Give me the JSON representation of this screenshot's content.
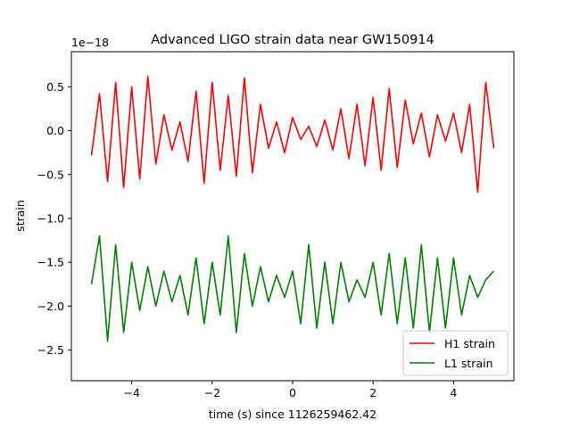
{
  "chart_data": {
    "type": "line",
    "title": "Advanced LIGO strain data near GW150914",
    "xlabel": "time (s) since 1126259462.42",
    "ylabel": "strain",
    "y_scale_note": "1e−18",
    "xlim": [
      -5.5,
      5.5
    ],
    "ylim": [
      -2.85,
      0.9
    ],
    "xticks": [
      {
        "value": -4,
        "label": "−4"
      },
      {
        "value": -2,
        "label": "−2"
      },
      {
        "value": 0,
        "label": "0"
      },
      {
        "value": 2,
        "label": "2"
      },
      {
        "value": 4,
        "label": "4"
      }
    ],
    "yticks": [
      {
        "value": 0.5,
        "label": "0.5"
      },
      {
        "value": 0.0,
        "label": "0.0"
      },
      {
        "value": -0.5,
        "label": "−0.5"
      },
      {
        "value": -1.0,
        "label": "−1.0"
      },
      {
        "value": -1.5,
        "label": "−1.5"
      },
      {
        "value": -2.0,
        "label": "−2.0"
      },
      {
        "value": -2.5,
        "label": "−2.5"
      }
    ],
    "grid": false,
    "legend_position": "lower-right",
    "series": [
      {
        "name": "H1 strain",
        "color": "#ff0000",
        "x": [
          -5.0,
          -4.8,
          -4.6,
          -4.4,
          -4.2,
          -4.0,
          -3.8,
          -3.6,
          -3.4,
          -3.2,
          -3.0,
          -2.8,
          -2.6,
          -2.4,
          -2.2,
          -2.0,
          -1.8,
          -1.6,
          -1.4,
          -1.2,
          -1.0,
          -0.8,
          -0.6,
          -0.4,
          -0.2,
          0.0,
          0.2,
          0.4,
          0.6,
          0.8,
          1.0,
          1.2,
          1.4,
          1.6,
          1.8,
          2.0,
          2.2,
          2.4,
          2.6,
          2.8,
          3.0,
          3.2,
          3.4,
          3.6,
          3.8,
          4.0,
          4.2,
          4.4,
          4.6,
          4.8,
          5.0
        ],
        "y": [
          -0.28,
          0.42,
          -0.58,
          0.55,
          -0.65,
          0.5,
          -0.55,
          0.62,
          -0.38,
          0.18,
          -0.22,
          0.1,
          -0.35,
          0.45,
          -0.6,
          0.55,
          -0.45,
          0.4,
          -0.52,
          0.6,
          -0.48,
          0.3,
          -0.2,
          0.1,
          -0.25,
          0.15,
          -0.1,
          0.05,
          -0.18,
          0.12,
          -0.22,
          0.25,
          -0.32,
          0.3,
          -0.4,
          0.38,
          -0.45,
          0.48,
          -0.42,
          0.35,
          -0.15,
          0.2,
          -0.3,
          0.18,
          -0.12,
          0.2,
          -0.25,
          0.3,
          -0.7,
          0.55,
          -0.2
        ]
      },
      {
        "name": "L1 strain",
        "color": "#008000",
        "x": [
          -5.0,
          -4.8,
          -4.6,
          -4.4,
          -4.2,
          -4.0,
          -3.8,
          -3.6,
          -3.4,
          -3.2,
          -3.0,
          -2.8,
          -2.6,
          -2.4,
          -2.2,
          -2.0,
          -1.8,
          -1.6,
          -1.4,
          -1.2,
          -1.0,
          -0.8,
          -0.6,
          -0.4,
          -0.2,
          0.0,
          0.2,
          0.4,
          0.6,
          0.8,
          1.0,
          1.2,
          1.4,
          1.6,
          1.8,
          2.0,
          2.2,
          2.4,
          2.6,
          2.8,
          3.0,
          3.2,
          3.4,
          3.6,
          3.8,
          4.0,
          4.2,
          4.4,
          4.6,
          4.8,
          5.0
        ],
        "y": [
          -1.75,
          -1.2,
          -2.4,
          -1.3,
          -2.3,
          -1.5,
          -2.05,
          -1.55,
          -2.0,
          -1.6,
          -1.95,
          -1.65,
          -2.1,
          -1.45,
          -2.2,
          -1.5,
          -2.1,
          -1.2,
          -2.3,
          -1.4,
          -2.0,
          -1.55,
          -1.95,
          -1.65,
          -1.9,
          -1.6,
          -2.2,
          -1.3,
          -2.25,
          -1.5,
          -2.2,
          -1.5,
          -1.95,
          -1.7,
          -1.9,
          -1.5,
          -2.1,
          -1.4,
          -2.2,
          -1.45,
          -2.25,
          -1.3,
          -2.3,
          -1.45,
          -2.25,
          -1.45,
          -2.1,
          -1.65,
          -1.9,
          -1.7,
          -1.6
        ]
      }
    ]
  }
}
